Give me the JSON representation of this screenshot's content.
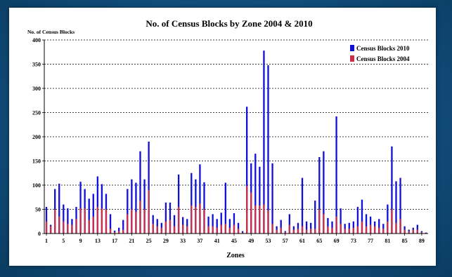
{
  "chart_data": {
    "type": "bar",
    "title": "No. of Census Blocks by Zone 2004 & 2010",
    "ylabel": "No. of Census Blocks",
    "xlabel": "Zones",
    "ylim": [
      0,
      400
    ],
    "yticks": [
      0,
      50,
      100,
      150,
      200,
      250,
      300,
      350,
      400
    ],
    "grid": "horizontal-dashed",
    "legend_position": "top-right",
    "categories": [
      1,
      2,
      3,
      4,
      5,
      6,
      7,
      8,
      9,
      10,
      11,
      12,
      13,
      14,
      15,
      16,
      17,
      18,
      19,
      20,
      21,
      22,
      23,
      24,
      25,
      26,
      27,
      28,
      29,
      30,
      31,
      32,
      33,
      34,
      35,
      36,
      37,
      38,
      39,
      40,
      41,
      42,
      43,
      44,
      45,
      46,
      47,
      48,
      49,
      50,
      51,
      52,
      53,
      54,
      55,
      56,
      57,
      58,
      59,
      60,
      61,
      62,
      63,
      64,
      65,
      66,
      67,
      68,
      69,
      70,
      71,
      72,
      73,
      74,
      75,
      76,
      77,
      78,
      79,
      80,
      81,
      82,
      83,
      84,
      85,
      86,
      87,
      88,
      89,
      90
    ],
    "tick_labels": [
      "1",
      "5",
      "9",
      "13",
      "17",
      "21",
      "25",
      "29",
      "33",
      "37",
      "41",
      "45",
      "49",
      "53",
      "57",
      "61",
      "65",
      "69",
      "73",
      "77",
      "81",
      "85",
      "89"
    ],
    "tick_positions": [
      1,
      5,
      9,
      13,
      17,
      21,
      25,
      29,
      33,
      37,
      41,
      45,
      49,
      53,
      57,
      61,
      65,
      69,
      73,
      77,
      81,
      85,
      89
    ],
    "series": [
      {
        "name": "Census Blocks 2010",
        "color": "#1010d8",
        "values": [
          55,
          18,
          92,
          103,
          60,
          52,
          30,
          55,
          107,
          92,
          72,
          82,
          118,
          102,
          82,
          40,
          6,
          12,
          28,
          92,
          112,
          105,
          170,
          112,
          190,
          38,
          30,
          22,
          64,
          64,
          38,
          122,
          34,
          30,
          125,
          112,
          143,
          106,
          35,
          40,
          30,
          43,
          105,
          30,
          42,
          22,
          5,
          262,
          145,
          165,
          138,
          378,
          348,
          145,
          15,
          28,
          5,
          40,
          15,
          22,
          115,
          25,
          22,
          68,
          158,
          170,
          32,
          25,
          242,
          52,
          20,
          22,
          25,
          55,
          70,
          40,
          35,
          25,
          30,
          20,
          60,
          180,
          108,
          115,
          15,
          8,
          12,
          18,
          5,
          2
        ]
      },
      {
        "name": "Census Blocks 2004",
        "color": "#c8304a",
        "values": [
          25,
          15,
          50,
          35,
          25,
          20,
          18,
          30,
          52,
          52,
          28,
          35,
          55,
          52,
          50,
          10,
          3,
          5,
          8,
          40,
          50,
          45,
          68,
          50,
          90,
          20,
          15,
          12,
          25,
          28,
          15,
          55,
          18,
          15,
          58,
          55,
          62,
          50,
          15,
          15,
          12,
          18,
          20,
          12,
          18,
          10,
          2,
          98,
          85,
          58,
          58,
          60,
          48,
          20,
          8,
          12,
          3,
          18,
          8,
          10,
          15,
          8,
          10,
          10,
          50,
          40,
          15,
          12,
          35,
          20,
          10,
          10,
          12,
          15,
          25,
          15,
          18,
          15,
          12,
          10,
          25,
          50,
          22,
          30,
          8,
          5,
          8,
          8,
          3,
          1
        ]
      }
    ]
  }
}
